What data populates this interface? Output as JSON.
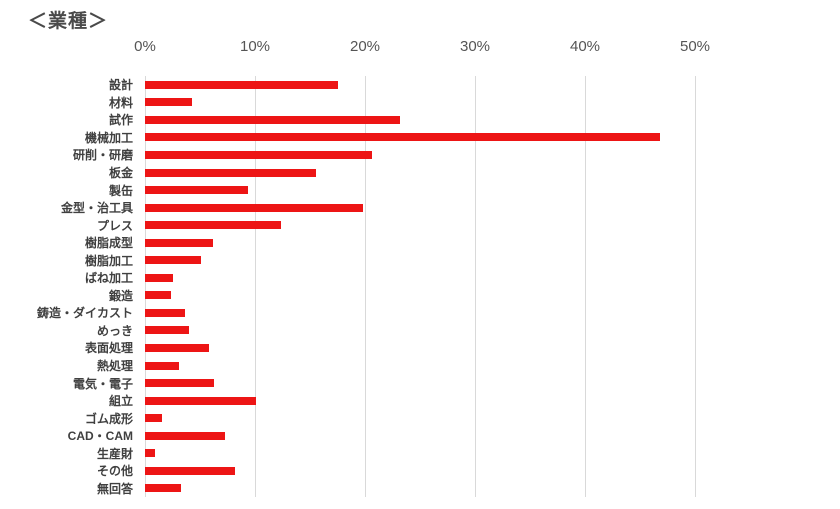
{
  "chart_data": {
    "type": "bar",
    "orientation": "horizontal",
    "title": "＜業種＞",
    "categories": [
      "設計",
      "材料",
      "試作",
      "機械加工",
      "研削・研磨",
      "板金",
      "製缶",
      "金型・治工具",
      "プレス",
      "樹脂成型",
      "樹脂加工",
      "ばね加工",
      "鍛造",
      "鋳造・ダイカスト",
      "めっき",
      "表面処理",
      "熱処理",
      "電気・電子",
      "組立",
      "ゴム成形",
      "CAD・CAM",
      "生産財",
      "その他",
      "無回答"
    ],
    "values": [
      17.5,
      4.3,
      23.2,
      46.8,
      20.6,
      15.5,
      9.4,
      19.8,
      12.4,
      6.2,
      5.1,
      2.5,
      2.4,
      3.6,
      4.0,
      5.8,
      3.1,
      6.3,
      10.1,
      1.5,
      7.3,
      0.9,
      8.2,
      3.3
    ],
    "unit": "%",
    "xlim": [
      0,
      50
    ],
    "x_ticks": [
      "0%",
      "10%",
      "20%",
      "30%",
      "40%",
      "50%"
    ],
    "x_tick_values": [
      0,
      10,
      20,
      30,
      40,
      50
    ],
    "grid": "vertical-only",
    "legend": "none",
    "colors": {
      "bar": "#ed1515",
      "gridline": "#d9d9d9",
      "axis_label": "#555555",
      "category_label": "#404040",
      "title": "#4a4a4a",
      "background": "#ffffff"
    }
  }
}
